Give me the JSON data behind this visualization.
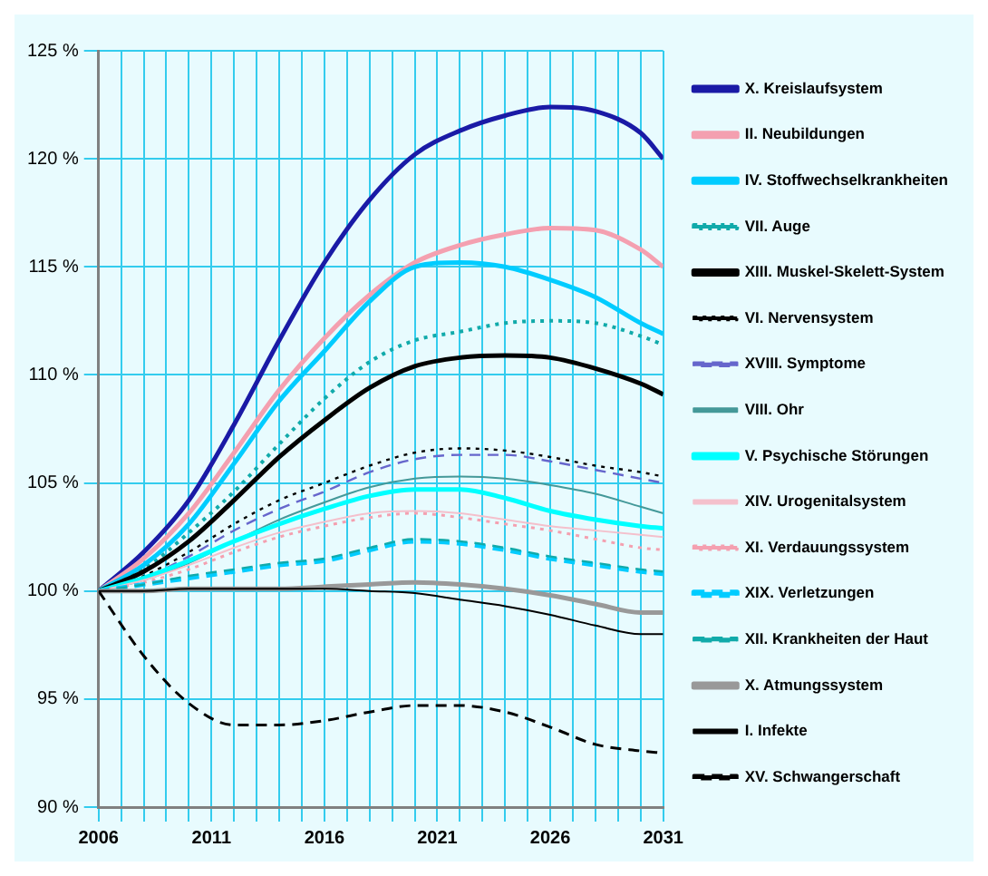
{
  "chart_data": {
    "type": "line",
    "x": [
      2006,
      2008,
      2010,
      2012,
      2014,
      2016,
      2018,
      2020,
      2022,
      2024,
      2026,
      2028,
      2030,
      2031
    ],
    "xlim": [
      2006,
      2031
    ],
    "xticks": [
      {
        "value": 2006,
        "label": "2006"
      },
      {
        "value": 2007,
        "label": null
      },
      {
        "value": 2008,
        "label": null
      },
      {
        "value": 2009,
        "label": null
      },
      {
        "value": 2010,
        "label": null
      },
      {
        "value": 2011,
        "label": "2011"
      },
      {
        "value": 2012,
        "label": null
      },
      {
        "value": 2013,
        "label": null
      },
      {
        "value": 2014,
        "label": null
      },
      {
        "value": 2015,
        "label": null
      },
      {
        "value": 2016,
        "label": "2016"
      },
      {
        "value": 2017,
        "label": null
      },
      {
        "value": 2018,
        "label": null
      },
      {
        "value": 2019,
        "label": null
      },
      {
        "value": 2020,
        "label": null
      },
      {
        "value": 2021,
        "label": "2021"
      },
      {
        "value": 2022,
        "label": null
      },
      {
        "value": 2023,
        "label": null
      },
      {
        "value": 2024,
        "label": null
      },
      {
        "value": 2025,
        "label": null
      },
      {
        "value": 2026,
        "label": "2026"
      },
      {
        "value": 2027,
        "label": null
      },
      {
        "value": 2028,
        "label": null
      },
      {
        "value": 2029,
        "label": null
      },
      {
        "value": 2030,
        "label": null
      },
      {
        "value": 2031,
        "label": "2031"
      }
    ],
    "ylim": [
      90,
      125
    ],
    "yticks": [
      {
        "value": 90,
        "label": "90 %"
      },
      {
        "value": 95,
        "label": "95 %"
      },
      {
        "value": 100,
        "label": "100 %"
      },
      {
        "value": 105,
        "label": "105 %"
      },
      {
        "value": 110,
        "label": "110 %"
      },
      {
        "value": 115,
        "label": "115 %"
      },
      {
        "value": 120,
        "label": "120 %"
      },
      {
        "value": 125,
        "label": "125 %"
      }
    ],
    "grid": true,
    "legend": "right",
    "marker": "none",
    "series": [
      {
        "name": "X. Kreislaufsystem",
        "color": "#1a1aa6",
        "line_style": "solid",
        "values": [
          100,
          101.8,
          104.2,
          107.7,
          111.6,
          115.2,
          118.1,
          120.2,
          121.3,
          122.0,
          122.4,
          122.2,
          121.2,
          120.0
        ]
      },
      {
        "name": "II. Neubildungen",
        "color": "#f4a0b0",
        "line_style": "solid",
        "values": [
          100,
          101.5,
          103.6,
          106.4,
          109.3,
          111.7,
          113.7,
          115.2,
          116.0,
          116.5,
          116.8,
          116.7,
          115.8,
          115.0
        ]
      },
      {
        "name": "IV. Stoffwechselkrankheiten",
        "color": "#00ccff",
        "line_style": "solid",
        "values": [
          100,
          101.2,
          103.1,
          105.9,
          108.8,
          111.1,
          113.4,
          115.0,
          115.2,
          115.0,
          114.4,
          113.6,
          112.4,
          111.9
        ]
      },
      {
        "name": "VII. Auge",
        "color": "#11aaaa",
        "line_style": "dotted",
        "values": [
          100,
          101.0,
          102.7,
          104.6,
          106.8,
          108.9,
          110.6,
          111.6,
          112.0,
          112.4,
          112.5,
          112.4,
          111.8,
          111.4
        ]
      },
      {
        "name": "XIII. Muskel-Skelett-System",
        "color": "#000000",
        "line_style": "solid",
        "values": [
          100,
          100.9,
          102.3,
          104.2,
          106.2,
          107.9,
          109.4,
          110.4,
          110.8,
          110.9,
          110.8,
          110.3,
          109.6,
          109.1
        ]
      },
      {
        "name": "VI. Nervensystem",
        "color": "#000000",
        "line_style": "dotted",
        "values": [
          100,
          100.7,
          101.8,
          103.1,
          104.2,
          105.0,
          105.8,
          106.4,
          106.6,
          106.5,
          106.2,
          105.8,
          105.5,
          105.3
        ]
      },
      {
        "name": "XVIII. Symptome",
        "color": "#6666cc",
        "line_style": "dashed",
        "values": [
          100,
          100.6,
          101.6,
          102.8,
          103.8,
          104.6,
          105.5,
          106.1,
          106.3,
          106.3,
          106.0,
          105.6,
          105.2,
          105.0
        ]
      },
      {
        "name": "VIII. Ohr",
        "color": "#449999",
        "line_style": "solid",
        "values": [
          100,
          100.5,
          101.3,
          102.3,
          103.3,
          104.1,
          104.8,
          105.2,
          105.3,
          105.2,
          104.9,
          104.5,
          103.9,
          103.6
        ]
      },
      {
        "name": "V. Psychische Störungen",
        "color": "#00ffff",
        "line_style": "solid",
        "values": [
          100,
          100.6,
          101.4,
          102.3,
          103.1,
          103.8,
          104.4,
          104.7,
          104.7,
          104.3,
          103.7,
          103.3,
          103.0,
          102.9
        ]
      },
      {
        "name": "XIV. Urogenitalsystem",
        "color": "#f4c0cc",
        "line_style": "solid",
        "values": [
          100,
          100.5,
          101.2,
          102.0,
          102.7,
          103.2,
          103.6,
          103.7,
          103.6,
          103.3,
          103.0,
          102.8,
          102.6,
          102.5
        ]
      },
      {
        "name": "XI. Verdauungssystem",
        "color": "#f4a0b0",
        "line_style": "dotted",
        "values": [
          100,
          100.4,
          101.0,
          101.8,
          102.5,
          103.0,
          103.4,
          103.6,
          103.4,
          103.1,
          102.8,
          102.4,
          102.0,
          101.9
        ]
      },
      {
        "name": "XIX. Verletzungen",
        "color": "#00ccff",
        "line_style": "dashed",
        "values": [
          100,
          100.3,
          100.6,
          100.9,
          101.2,
          101.4,
          101.9,
          102.3,
          102.2,
          101.9,
          101.5,
          101.2,
          100.9,
          100.8
        ]
      },
      {
        "name": "XII. Krankheiten der Haut",
        "color": "#11aaaa",
        "line_style": "dashed",
        "values": [
          100,
          100.3,
          100.7,
          101.0,
          101.3,
          101.5,
          102.0,
          102.4,
          102.3,
          102.0,
          101.6,
          101.3,
          101.0,
          100.9
        ]
      },
      {
        "name": "X. Atmungssystem",
        "color": "#999999",
        "line_style": "solid",
        "values": [
          100,
          100.0,
          100.1,
          100.1,
          100.1,
          100.2,
          100.3,
          100.4,
          100.3,
          100.1,
          99.8,
          99.4,
          99.0,
          99.0
        ]
      },
      {
        "name": "I. Infekte",
        "color": "#000000",
        "line_style": "solid",
        "values": [
          100,
          100.0,
          100.1,
          100.1,
          100.1,
          100.1,
          100.0,
          99.9,
          99.6,
          99.3,
          98.9,
          98.4,
          98.0,
          98.0
        ]
      },
      {
        "name": "XV. Schwangerschaft",
        "color": "#000000",
        "line_style": "dashed",
        "values": [
          100,
          97.0,
          94.8,
          93.8,
          93.8,
          94.0,
          94.4,
          94.7,
          94.7,
          94.4,
          93.7,
          92.9,
          92.6,
          92.5
        ]
      }
    ]
  }
}
